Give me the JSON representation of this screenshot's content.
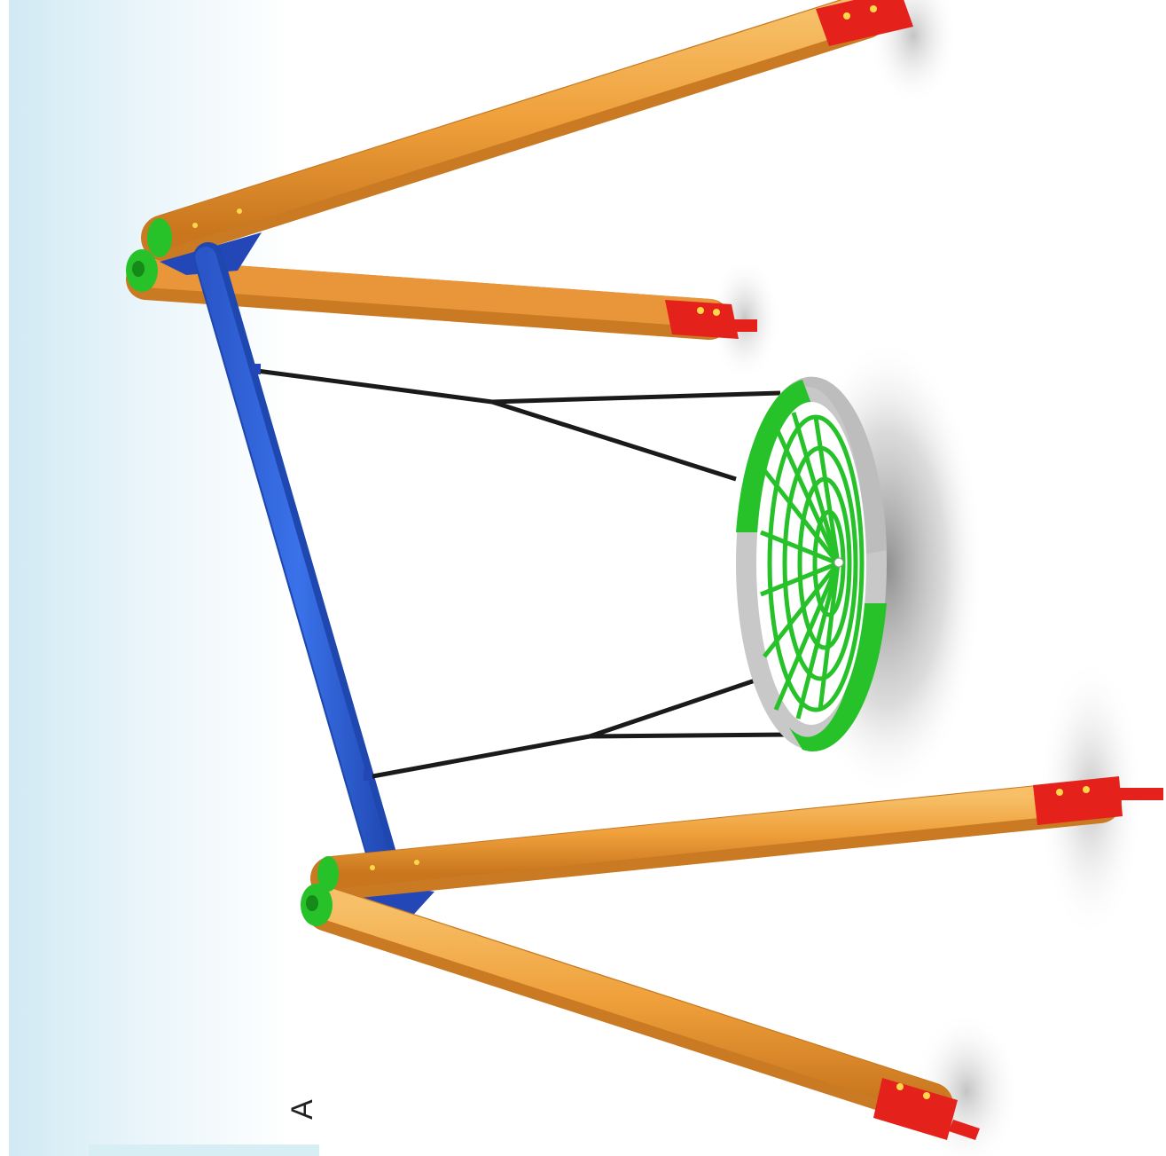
{
  "image": {
    "subject": "nest-swing-playground-frame",
    "visible_text": "A",
    "colors": {
      "wood": "#f0a440",
      "wood_dark": "#c97a22",
      "beam": "#2f63d9",
      "bracket": "#e5211b",
      "seat_ring": "#27c22a",
      "seat_gray": "#c8c8c8",
      "rope": "#1a1a1a",
      "sky": "#d6edf5"
    }
  }
}
